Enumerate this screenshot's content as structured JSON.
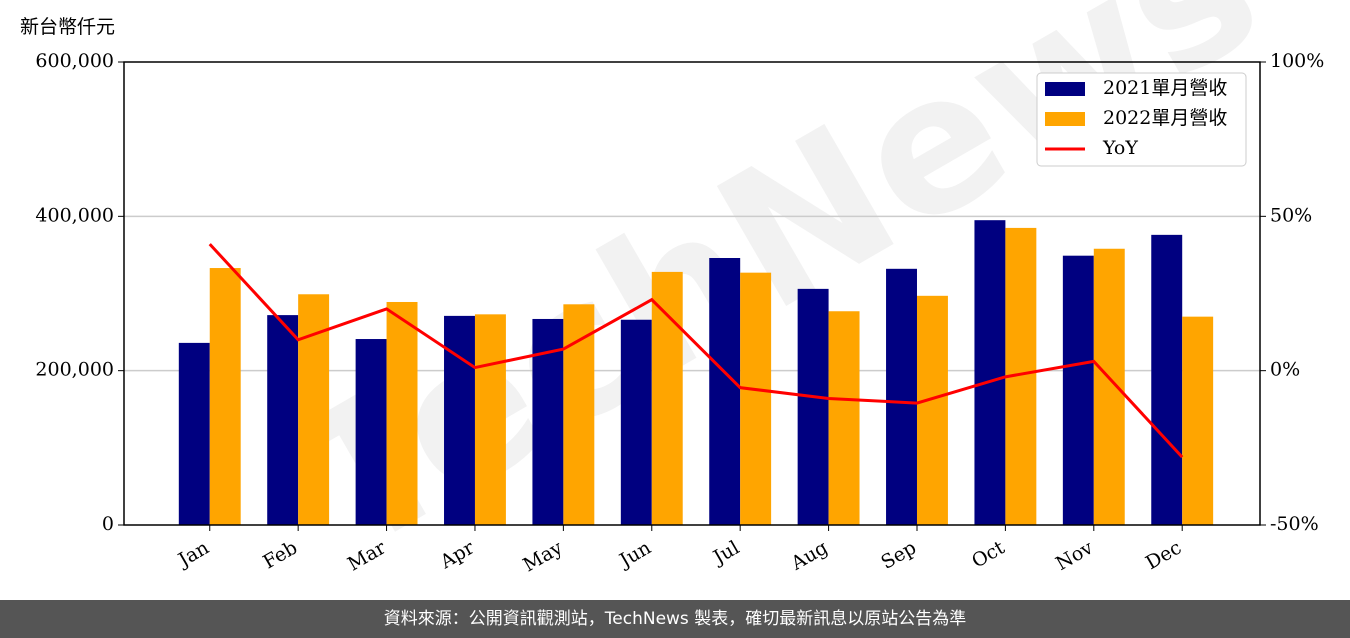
{
  "chart_data": {
    "type": "bar_line",
    "unit_label": "新台幣仟元",
    "watermark": "TechNews",
    "footer": "資料來源：公開資訊觀測站，TechNews 製表，確切最新訊息以原站公告為準",
    "categories": [
      "Jan",
      "Feb",
      "Mar",
      "Apr",
      "May",
      "Jun",
      "Jul",
      "Aug",
      "Sep",
      "Oct",
      "Nov",
      "Dec"
    ],
    "series": [
      {
        "name": "2021單月營收",
        "type": "bar",
        "color": "#000080",
        "values": [
          236000,
          272000,
          241000,
          271000,
          267000,
          266000,
          346000,
          306000,
          332000,
          395000,
          349000,
          376000
        ]
      },
      {
        "name": "2022單月營收",
        "type": "bar",
        "color": "#ffa500",
        "values": [
          333000,
          299000,
          289000,
          273000,
          286000,
          328000,
          327000,
          277000,
          297000,
          385000,
          358000,
          270000
        ]
      },
      {
        "name": "YoY",
        "type": "line",
        "axis": "y2",
        "color": "#ff0000",
        "values": [
          41,
          10,
          20,
          1,
          7,
          23,
          -5.5,
          -9,
          -10.5,
          -2,
          3,
          -28
        ]
      }
    ],
    "ylim": [
      0,
      600000
    ],
    "yticks": [
      0,
      {
        "value": 200000,
        "label": "200,000"
      },
      {
        "value": 400000,
        "label": "400,000"
      },
      {
        "value": 600000,
        "label": "600,000"
      }
    ],
    "y2lim": [
      -50,
      100
    ],
    "y2ticks": [
      {
        "value": -50,
        "label": "-50%"
      },
      {
        "value": 0,
        "label": "0%"
      },
      {
        "value": 50,
        "label": "50%"
      },
      {
        "value": 100,
        "label": "100%"
      }
    ],
    "grid": true,
    "legend": "upper right"
  }
}
